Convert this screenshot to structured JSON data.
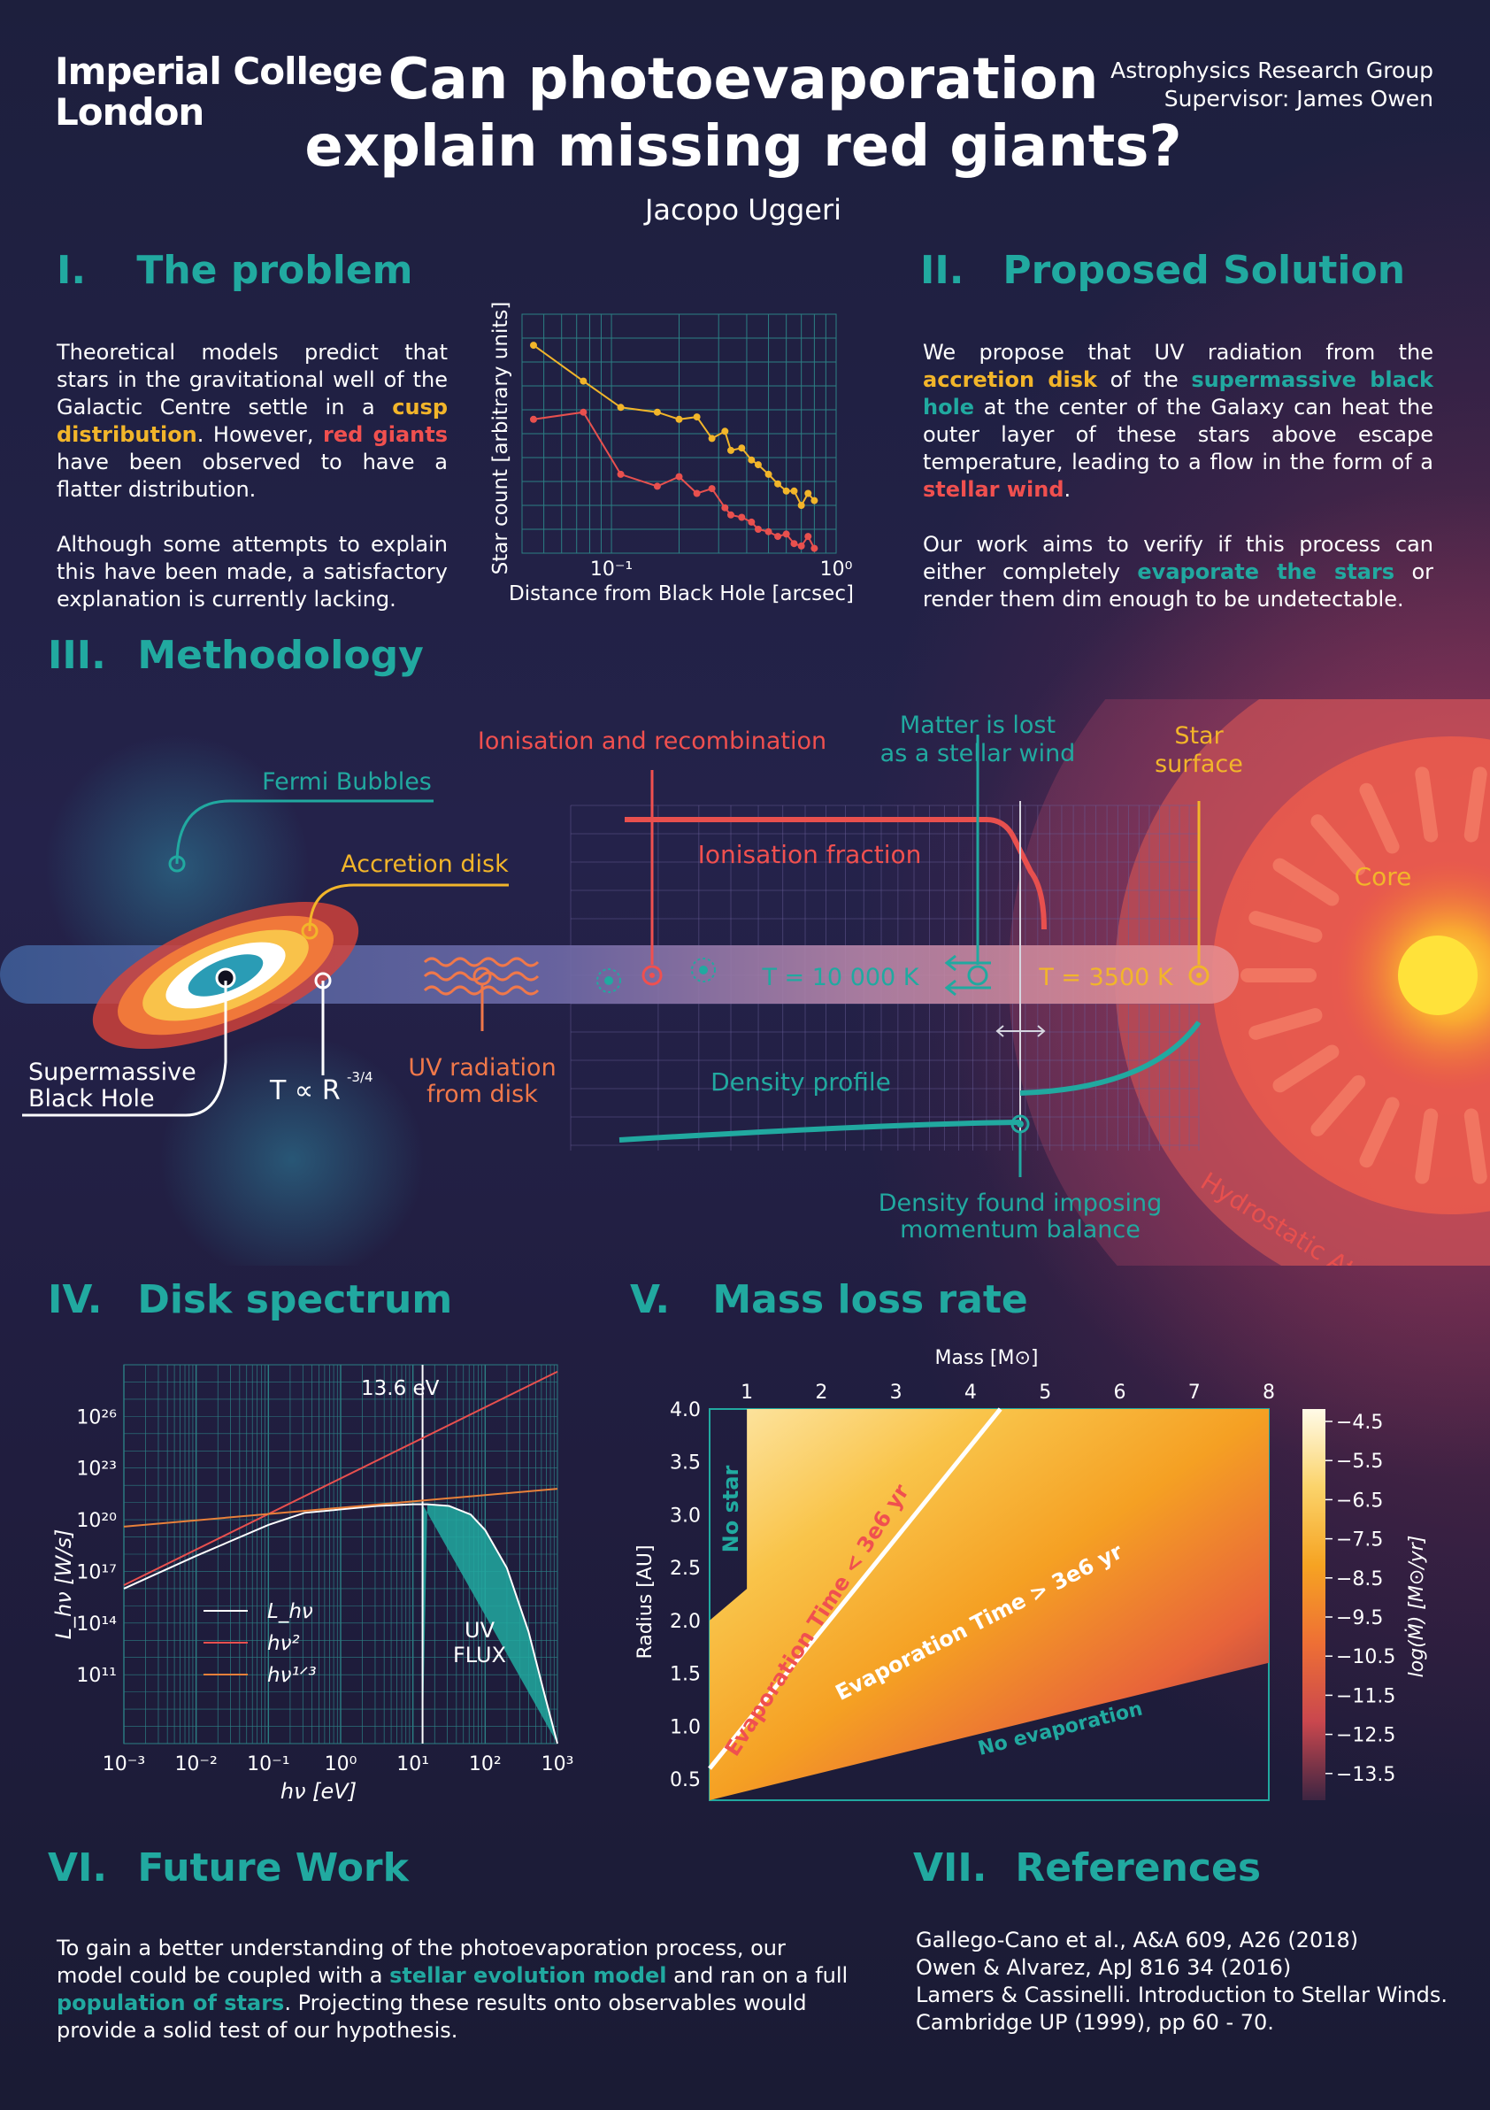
{
  "header": {
    "logo_line1": "Imperial College",
    "logo_line2": "London",
    "title_line1": "Can photoevaporation",
    "title_line2": "explain missing red giants?",
    "author": "Jacopo Uggeri",
    "group": "Astrophysics Research Group",
    "supervisor": "Supervisor:  James Owen"
  },
  "sections": {
    "s1": {
      "num": "I.",
      "title": "The problem"
    },
    "s2": {
      "num": "II.",
      "title": "Proposed Solution"
    },
    "s3": {
      "num": "III.",
      "title": "Methodology"
    },
    "s4": {
      "num": "IV.",
      "title": "Disk spectrum"
    },
    "s5": {
      "num": "V.",
      "title": "Mass loss rate"
    },
    "s6": {
      "num": "VI.",
      "title": "Future Work"
    },
    "s7": {
      "num": "VII.",
      "title": "References"
    }
  },
  "problem": {
    "p1_a": "Theoretical models predict that stars in the gravitational well of the Galactic Centre settle in a ",
    "p1_cusp": "cusp distribution",
    "p1_b": ". However, ",
    "p1_red": "red giants",
    "p1_c": " have been observed to have a flatter distribution.",
    "p2": "Although some attempts to explain this have been made, a satisfactory explanation is currently lacking."
  },
  "solution": {
    "a": "We propose that UV radiation from the ",
    "accretion": "accretion disk",
    "b": " of the ",
    "smbh": "supermassive black hole",
    "c": " at the center of the Galaxy can heat the outer layer of these stars above escape temperature, leading to a flow in the form of a ",
    "wind": "stellar wind",
    "d": ".",
    "p2_a": "Our work aims to verify if this process can either completely ",
    "evap": "evaporate the stars",
    "p2_b": " or render them dim enough to be undetectable."
  },
  "methodology": {
    "fermi": "Fermi Bubbles",
    "accretion": "Accretion disk",
    "smbh_1": "Supermassive",
    "smbh_2": "Black Hole",
    "t_r": "T ∝ R",
    "t_r_exp": "-3/4",
    "uv_1": "UV radiation",
    "uv_2": "from disk",
    "ionisation": "Ionisation and recombination",
    "ion_fraction": "Ionisation fraction",
    "matter_1": "Matter is lost",
    "matter_2": "as a stellar wind",
    "surface_1": "Star",
    "surface_2": "surface",
    "core": "Core",
    "t_hot": "T = 10 000 K",
    "t_cool": "T = 3500 K",
    "density": "Density profile",
    "density_found_1": "Density found imposing",
    "density_found_2": "momentum balance",
    "hydro": "Hydrostatic Atmosphere"
  },
  "future": {
    "a": "To gain a better understanding of the photoevaporation process, our model could be coupled with a ",
    "sem": "stellar evolution model",
    "b": " and ran on a full ",
    "pop": "population of stars",
    "c": ". Projecting these results onto observables would provide a solid test of our hypothesis."
  },
  "references": [
    "Gallego-Cano et al., A&A 609, A26 (2018)",
    "Owen & Alvarez, ApJ 816 34 (2016)",
    "Lamers & Cassinelli. Introduction to Stellar Winds.",
    "Cambridge UP (1999), pp 60 - 70."
  ],
  "chart_data": [
    {
      "type": "line",
      "xlabel": "Distance from Black Hole [arcsec]",
      "ylabel": "Star count [arbitrary units]",
      "xscale": "log",
      "xlim": [
        0.04,
        1.0
      ],
      "ylim": [
        0,
        10
      ],
      "xticks": [
        "10⁻¹",
        "10⁰"
      ],
      "grid": true,
      "series": [
        {
          "color": "#f2b52a",
          "x": [
            0.045,
            0.075,
            0.11,
            0.16,
            0.2,
            0.24,
            0.28,
            0.32,
            0.34,
            0.38,
            0.42,
            0.45,
            0.5,
            0.55,
            0.6,
            0.65,
            0.7,
            0.75,
            0.8
          ],
          "y": [
            8.7,
            7.2,
            6.1,
            5.9,
            5.6,
            5.7,
            4.8,
            5.1,
            4.3,
            4.4,
            3.9,
            3.7,
            3.3,
            2.9,
            2.6,
            2.6,
            2.0,
            2.5,
            2.2
          ]
        },
        {
          "color": "#e8504e",
          "x": [
            0.045,
            0.075,
            0.11,
            0.16,
            0.2,
            0.24,
            0.28,
            0.32,
            0.34,
            0.38,
            0.42,
            0.45,
            0.5,
            0.55,
            0.6,
            0.65,
            0.7,
            0.75,
            0.8
          ],
          "y": [
            5.6,
            5.9,
            3.3,
            2.8,
            3.2,
            2.5,
            2.7,
            1.9,
            1.6,
            1.5,
            1.3,
            1.0,
            0.9,
            0.7,
            0.8,
            0.4,
            0.3,
            0.7,
            0.2
          ]
        }
      ]
    },
    {
      "type": "line",
      "xlabel": "hν   [eV]",
      "ylabel": "L_hν  [W/s]",
      "xscale": "log",
      "xlim": [
        0.001,
        1000
      ],
      "ylim_log10": [
        7,
        29
      ],
      "xticks": [
        "10⁻³",
        "10⁻²",
        "10⁻¹",
        "10⁰",
        "10¹",
        "10²",
        "10³"
      ],
      "yticks": [
        "10²⁶",
        "10²³",
        "10²⁰",
        "10¹⁷",
        "10¹⁴",
        "10¹¹"
      ],
      "annotation": "13.6 eV",
      "uv_label_1": "UV",
      "uv_label_2": "FLUX",
      "uv_cut_ev": 13.6,
      "series": [
        {
          "name": "L_hν",
          "color": "#ffffff",
          "log10_x": [
            -3,
            -2,
            -1,
            -0.5,
            0,
            0.5,
            1,
            1.2,
            1.5,
            1.8,
            2,
            2.3,
            2.6,
            2.8,
            3
          ],
          "log10_y": [
            16,
            17.9,
            19.7,
            20.4,
            20.6,
            20.8,
            20.9,
            20.9,
            20.8,
            20.3,
            19.4,
            17.2,
            13.5,
            10.2,
            7
          ]
        },
        {
          "name": "hν²",
          "color": "#e8504e",
          "log10_x": [
            -3,
            3
          ],
          "log10_y": [
            16.2,
            28.6
          ]
        },
        {
          "name": "hν¹ᐟ³",
          "color": "#e8803a",
          "log10_x": [
            -3,
            3
          ],
          "log10_y": [
            19.6,
            21.8
          ]
        }
      ],
      "legend": [
        "L_hν",
        "hν²",
        "hν¹ᐟ³"
      ]
    },
    {
      "type": "heatmap",
      "xlabel": "Mass [M⊙]",
      "ylabel": "Radius [AU]",
      "xlim": [
        0.5,
        8
      ],
      "ylim": [
        0.3,
        4.0
      ],
      "xticks": [
        "1",
        "2",
        "3",
        "4",
        "5",
        "6",
        "7",
        "8"
      ],
      "yticks": [
        "0.5",
        "1.0",
        "1.5",
        "2.0",
        "2.5",
        "3.0",
        "3.5",
        "4.0"
      ],
      "colorbar_label": "log(Ṁ) [M⊙/yr]",
      "colorbar_ticks": [
        "−4.5",
        "−5.5",
        "−6.5",
        "−7.5",
        "−8.5",
        "−9.5",
        "−10.5",
        "−11.5",
        "−12.5",
        "−13.5"
      ],
      "regions": {
        "no_star": "No star",
        "fast": "Evaporation Time < 3e6 yr",
        "slow": "Evaporation Time > 3e6 yr",
        "none": "No evaporation"
      }
    }
  ],
  "colors": {
    "teal": "#21a9a0",
    "gold": "#f2b52a",
    "red": "#f0504f",
    "background": "#1e2040"
  }
}
